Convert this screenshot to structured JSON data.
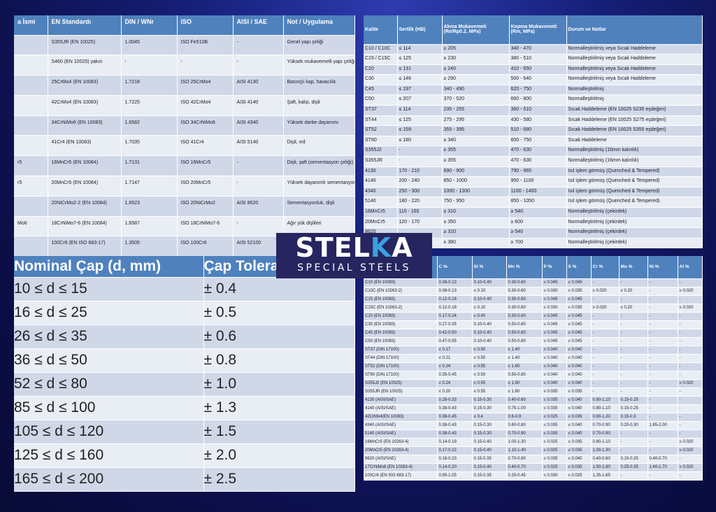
{
  "standards_table": {
    "headers": [
      "a İsmi",
      "EN Standardı",
      "DIN / WNr",
      "ISO",
      "AISI / SAE",
      "Not / Uygulama"
    ],
    "rows": [
      [
        "",
        "S355JR (EN 10025)",
        "1.0045",
        "ISO Fe510B",
        "-",
        "Genel yapı çeliği"
      ],
      [
        "",
        "S460 (EN 10025) yakın",
        "-",
        "-",
        "-",
        "Yüksek mukavemetli yapı çeliği"
      ],
      [
        "",
        "25CrMo4 (EN 10083)",
        "1.7218",
        "ISO 25CrMo4",
        "AISI 4130",
        "Basınçlı kap, havacılık"
      ],
      [
        "",
        "42CrMo4 (EN 10083)",
        "1.7225",
        "ISO 42CrMo4",
        "AISI 4140",
        "Şaft, kalıp, dişli"
      ],
      [
        "",
        "34CrNiMo6 (EN 10083)",
        "1.6582",
        "ISO 34CrNiMo6",
        "AISI 4340",
        "Yüksek darbe dayanımı"
      ],
      [
        "",
        "41Cr4 (EN 10083)",
        "1.7035",
        "ISO 41Cr4",
        "AISI 5140",
        "Dişli, mil"
      ],
      [
        "r5",
        "16MnCr5 (EN 10084)",
        "1.7131",
        "ISO 16MnCr5",
        "-",
        "Dişli, şaft (sementasyon çeliği)"
      ],
      [
        "r5",
        "20MnCr5 (EN 10084)",
        "1.7147",
        "ISO 20MnCr5",
        "-",
        "Yüksek dayanımlı sementasyon"
      ],
      [
        "",
        "20NiCrMo2-2 (EN 10084)",
        "1.6523",
        "ISO 20NiCrMo2",
        "AISI 8620",
        "Sementasyonluk, dişli"
      ],
      [
        "Mo6",
        "18CrNiMo7-6 (EN 10084)",
        "1.6587",
        "ISO 18CrNiMo7-6",
        "-",
        "Ağır yük dişlileri"
      ],
      [
        "",
        "100Cr6 (EN ISO 683-17)",
        "1.3505",
        "ISO 100Cr6",
        "AISI 52100",
        ""
      ]
    ]
  },
  "mechanical_table": {
    "headers": [
      "Kalite",
      "Sertlik (HB)",
      "Akma Mukavemeti (Re/Rp0.2, MPa)",
      "Kopma Mukavemeti (Rm, MPa)",
      "Durum ve Notlar"
    ],
    "rows": [
      [
        "C10 / C10C",
        "≤ 114",
        "≥ 205",
        "340 - 470",
        "Normalleştirilmiş veya Sıcak Haddeleme"
      ],
      [
        "C15 / C15C",
        "≤ 125",
        "≥ 230",
        "380 - 510",
        "Normalleştirilmiş veya Sıcak Haddeleme"
      ],
      [
        "C20",
        "≤ 131",
        "≥ 240",
        "410 - 550",
        "Normalleştirilmiş veya Sıcak Haddeleme"
      ],
      [
        "C30",
        "≤ 146",
        "≥ 290",
        "500 - 640",
        "Normalleştirilmiş veya Sıcak Haddeleme"
      ],
      [
        "C45",
        "≤ 197",
        "340 - 490",
        "620 - 750",
        "Normalleştirilmiş"
      ],
      [
        "C50",
        "≤ 207",
        "370 - 520",
        "660 - 800",
        "Normalleştirilmiş"
      ],
      [
        "ST37",
        "≤ 114",
        "235 - 255",
        "360 - 510",
        "Sıcak Haddeleme (EN 10025 S235 eşdeğeri)"
      ],
      [
        "ST44",
        "≤ 125",
        "275 - 295",
        "430 - 580",
        "Sıcak Haddeleme (EN 10025 S275 eşdeğeri)"
      ],
      [
        "ST52",
        "≤ 159",
        "355 - 395",
        "510 - 680",
        "Sıcak Haddeleme (EN 10025 S355 eşdeğeri)"
      ],
      [
        "ST60",
        "≤ 180",
        "≥ 340",
        "600 - 750",
        "Sıcak Haddeleme"
      ],
      [
        "S355J2",
        "-",
        "≥ 355",
        "470 - 630",
        "Normalleştirilmiş (16mm kalınlık)"
      ],
      [
        "S355JR",
        "-",
        "≥ 355",
        "470 - 630",
        "Normalleştirilmiş (16mm kalınlık)"
      ],
      [
        "4130",
        "170 - 210",
        "690 - 900",
        "790 - 965",
        "Isıl işlem görmüş (Quenched & Tempered)"
      ],
      [
        "4140",
        "200 - 240",
        "850 - 1000",
        "950 - 1100",
        "Isıl işlem görmüş (Quenched & Tempered)"
      ],
      [
        "4340",
        "250 - 300",
        "1000 - 1300",
        "1100 - 1400",
        "Isıl işlem görmüş (Quenched & Tempered)"
      ],
      [
        "5140",
        "180 - 220",
        "750 - 950",
        "850 - 1050",
        "Isıl işlem görmüş (Quenched & Tempered)"
      ],
      [
        "16MnCr5",
        "115 - 165",
        "≥ 310",
        "≥ 540",
        "Normalleştirilmiş (çekirdek)"
      ],
      [
        "20MnCr5",
        "120 - 170",
        "≥ 350",
        "≥ 600",
        "Normalleştirilmiş (çekirdek)"
      ],
      [
        "8620",
        "",
        "≥ 310",
        "≥ 540",
        "Normalleştirilmiş (çekirdek)"
      ],
      [
        "",
        "",
        "≥ 380",
        "≥ 700",
        "Normalleştirilmiş (çekirdek)"
      ]
    ]
  },
  "chemical_table": {
    "headers": [
      "",
      "C %",
      "Si %",
      "Mn %",
      "P %",
      "S %",
      "Cr %",
      "Mo %",
      "Ni %",
      "Al %"
    ],
    "rows": [
      [
        "C10 (EN 10083)",
        "0.08-0.13",
        "0.10-0.40",
        "0.30-0.60",
        "≤ 0.045",
        "≤ 0.045",
        "-",
        "-",
        "-",
        "-"
      ],
      [
        "C10C (EN 10263-2)",
        "0.08-0.13",
        "≤ 0.10",
        "0.30-0.60",
        "≤ 0.030",
        "≤ 0.035",
        "≥ 0.020",
        "≤ 0.20",
        "-",
        "≥ 0.020"
      ],
      [
        "C15 (EN 10083)",
        "0.12-0.18",
        "0.10-0.40",
        "0.30-0.60",
        "≤ 0.045",
        "≤ 0.045",
        "-",
        "-",
        "-",
        "-"
      ],
      [
        "C15C (EN 10263-2)",
        "0.12-0.18",
        "≤ 0.10",
        "0.30-0.60",
        "≤ 0.030",
        "≤ 0.035",
        "≥ 0.020",
        "≤ 0.20",
        "-",
        "≥ 0.020"
      ],
      [
        "C20 (EN 10083)",
        "0.17-0.24",
        "≤ 0.40",
        "0.30-0.60",
        "≤ 0.045",
        "≤ 0.045",
        "-",
        "-",
        "-",
        "-"
      ],
      [
        "C30 (EN 10083)",
        "0.27-0.35",
        "0.10-0.40",
        "0.50-0.80",
        "≤ 0.045",
        "≤ 0.045",
        "-",
        "-",
        "-",
        "-"
      ],
      [
        "C45 (EN 10083)",
        "0.42-0.50",
        "0.10-0.40",
        "0.50-0.80",
        "≤ 0.045",
        "≤ 0.045",
        "-",
        "-",
        "-",
        "-"
      ],
      [
        "C50 (EN 10083)",
        "0.47-0.55",
        "0.10-0.40",
        "0.50-0.80",
        "≤ 0.045",
        "≤ 0.045",
        "-",
        "-",
        "-",
        "-"
      ],
      [
        "ST37 (DIN 17100)",
        "≤ 0.17",
        "≤ 0.50",
        "≤ 1.40",
        "≤ 0.040",
        "≤ 0.040",
        "-",
        "-",
        "-",
        "-"
      ],
      [
        "ST44 (DIN 17100)",
        "≤ 0.21",
        "≤ 0.50",
        "≤ 1.40",
        "≤ 0.040",
        "≤ 0.040",
        "-",
        "-",
        "-",
        "-"
      ],
      [
        "ST52 (DIN 17100)",
        "≤ 0.24",
        "≤ 0.55",
        "≤ 1.60",
        "≤ 0.040",
        "≤ 0.040",
        "-",
        "-",
        "-",
        "-"
      ],
      [
        "ST60 (DIN 17100)",
        "0.35-0.45",
        "≤ 0.50",
        "0.50-0.80",
        "≤ 0.040",
        "≤ 0.040",
        "-",
        "-",
        "-",
        "-"
      ],
      [
        "S355J2 (EN 10025)",
        "≤ 0.24",
        "≤ 0.55",
        "≤ 1.60",
        "≤ 0.040",
        "≤ 0.040",
        "-",
        "-",
        "-",
        "≥ 0.020"
      ],
      [
        "S355JR (EN 10025)",
        "≤ 0.20",
        "≤ 0.55",
        "≤ 1.60",
        "≤ 0.035",
        "≤ 0.035",
        "-",
        "-",
        "-",
        "-"
      ],
      [
        "4130 (AISI/SAE)",
        "0.28-0.33",
        "0.15-0.30",
        "0.40-0.60",
        "≤ 0.035",
        "≤ 0.040",
        "0.80-1.10",
        "0.15-0.25",
        "-",
        "-"
      ],
      [
        "4140 (AISI/SAE)",
        "0.38-0.43",
        "0.15-0.30",
        "0.75-1.00",
        "≤ 0.035",
        "≤ 0.040",
        "0.80-1.10",
        "0.15-0.25",
        "-",
        "-"
      ],
      [
        "42CrMo4(EN 10083)",
        "0.38-0.45",
        "≤ 0,4",
        "0.6-0.9",
        "≤ 0.025",
        "≤ 0.035",
        "0.90-1.20",
        "0.15-0.3",
        "-",
        "-"
      ],
      [
        "4340 (AISI/SAE)",
        "0.38-0.43",
        "0.15-0.30",
        "0.60-0.80",
        "≤ 0.035",
        "≤ 0.040",
        "0.70-0.90",
        "0.20-0.30",
        "1.65-2.00",
        "-"
      ],
      [
        "5140 (AISI/SAE)",
        "0.38-0.43",
        "0.15-0.30",
        "0.70-0.90",
        "≤ 0.035",
        "≤ 0.040",
        "0.70-0.90",
        "-",
        "-",
        "-"
      ],
      [
        "16MnCr5 (EN 10263-4)",
        "0.14-0.19",
        "0.15-0.40",
        "1.00-1.30",
        "≤ 0.025",
        "≤ 0.035",
        "0.80-1.10",
        "-",
        "-",
        "≥ 0.020"
      ],
      [
        "20MnCr5 (EN 10263-4)",
        "0.17-0.22",
        "0.15-0.40",
        "1.10-1.40",
        "≤ 0.025",
        "≤ 0.035",
        "1.00-1.30",
        "-",
        "-",
        "≥ 0.020"
      ],
      [
        "8620 (AISI/SAE)",
        "0.18-0.23",
        "0.15-0.35",
        "0.70-0.90",
        "≤ 0.035",
        "≤ 0.040",
        "0.40-0.60",
        "0.15-0.25",
        "0.40-0.70",
        "-"
      ],
      [
        "17CrNiMo6 (EN 10263-4)",
        "0.14-0.20",
        "0.15-0.40",
        "0.40-0.70",
        "≤ 0.025",
        "≤ 0.035",
        "1.50-1.80",
        "0.25-0.35",
        "1.40-1.70",
        "≥ 0.020"
      ],
      [
        "100Cr6 (EN ISO 683-17)",
        "0.95-1.05",
        "0.15-0.35",
        "0.25-0.45",
        "≤ 0.030",
        "≤ 0.025",
        "1.35-1.65",
        "-",
        "-",
        "-"
      ]
    ]
  },
  "tolerance_table": {
    "headers": [
      "Nominal Çap (d, mm)",
      "Çap Tolerans"
    ],
    "rows": [
      [
        "10 ≤ d ≤ 15",
        "± 0.4"
      ],
      [
        "16 ≤ d ≤ 25",
        "± 0.5"
      ],
      [
        "26 ≤ d ≤ 35",
        "± 0.6"
      ],
      [
        "36 ≤ d ≤ 50",
        "± 0.8"
      ],
      [
        "52 ≤ d ≤ 80",
        "± 1.0"
      ],
      [
        "85 ≤ d ≤ 100",
        "± 1.3"
      ],
      [
        "105 ≤ d ≤ 120",
        "± 1.5"
      ],
      [
        "125 ≤ d ≤ 160",
        "± 2.0"
      ],
      [
        "165 ≤ d ≤ 200",
        "± 2.5"
      ]
    ]
  },
  "logo": {
    "part1": "STEL",
    "part2": "K",
    "part3": "A",
    "tagline": "SPECIAL STEELS"
  }
}
